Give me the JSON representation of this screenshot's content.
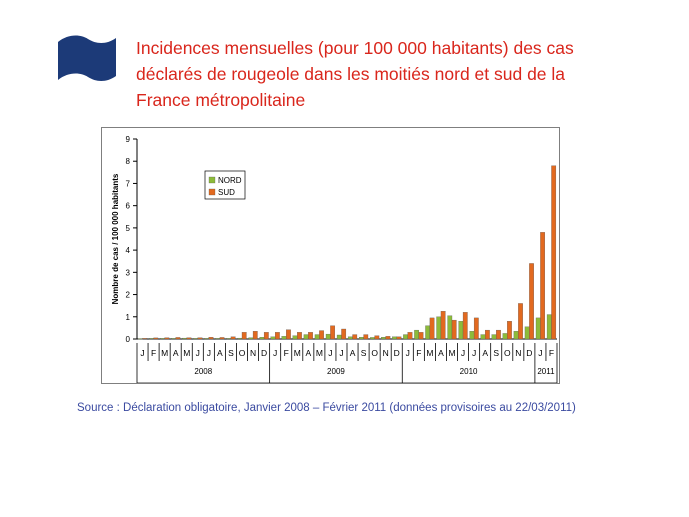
{
  "slide": {
    "title_lines": [
      "Incidences mensuelles (pour 100 000 habitants) des cas",
      "déclarés de rougeole dans les moitiés nord et sud de la",
      "France métropolitaine"
    ],
    "source": "Source : Déclaration obligatoire, Janvier 2008 – Février 2011 (données provisoires au 22/03/2011)",
    "flag_icon": "waving-flag-icon",
    "colors": {
      "title": "#d9261c",
      "source": "#3a4aa0",
      "flag": "#1c3a78",
      "nord": "#8dbb3a",
      "sud": "#e2691f"
    }
  },
  "chart_data": {
    "type": "bar",
    "ylabel": "Nombre de cas / 100 000 habitants",
    "ylim": [
      0,
      9
    ],
    "yticks": [
      0,
      1,
      2,
      3,
      4,
      5,
      6,
      7,
      8,
      9
    ],
    "grid": false,
    "legend_position": "top-left",
    "months": [
      "J",
      "F",
      "M",
      "A",
      "M",
      "J",
      "J",
      "A",
      "S",
      "O",
      "N",
      "D",
      "J",
      "F",
      "M",
      "A",
      "M",
      "J",
      "J",
      "A",
      "S",
      "O",
      "N",
      "D",
      "J",
      "F",
      "M",
      "A",
      "M",
      "J",
      "J",
      "A",
      "S",
      "O",
      "N",
      "D",
      "J",
      "F"
    ],
    "years": [
      {
        "label": "2008",
        "start": 0,
        "count": 12
      },
      {
        "label": "2009",
        "start": 12,
        "count": 12
      },
      {
        "label": "2010",
        "start": 24,
        "count": 12
      },
      {
        "label": "2011",
        "start": 36,
        "count": 2
      }
    ],
    "series": [
      {
        "name": "NORD",
        "color": "#8dbb3a",
        "values": [
          0.02,
          0.03,
          0.03,
          0.03,
          0.04,
          0.03,
          0.03,
          0.03,
          0.03,
          0.04,
          0.06,
          0.08,
          0.1,
          0.12,
          0.15,
          0.2,
          0.2,
          0.22,
          0.18,
          0.1,
          0.08,
          0.07,
          0.08,
          0.1,
          0.2,
          0.4,
          0.6,
          1.0,
          1.05,
          0.8,
          0.35,
          0.2,
          0.2,
          0.25,
          0.35,
          0.55,
          0.95,
          1.1
        ]
      },
      {
        "name": "SUD",
        "color": "#e2691f",
        "values": [
          0.03,
          0.05,
          0.06,
          0.07,
          0.06,
          0.06,
          0.08,
          0.07,
          0.1,
          0.3,
          0.35,
          0.3,
          0.3,
          0.42,
          0.3,
          0.3,
          0.38,
          0.6,
          0.45,
          0.2,
          0.2,
          0.15,
          0.12,
          0.1,
          0.3,
          0.3,
          0.95,
          1.25,
          0.85,
          1.2,
          0.95,
          0.4,
          0.4,
          0.8,
          1.6,
          3.4,
          4.8,
          7.8
        ]
      }
    ]
  }
}
